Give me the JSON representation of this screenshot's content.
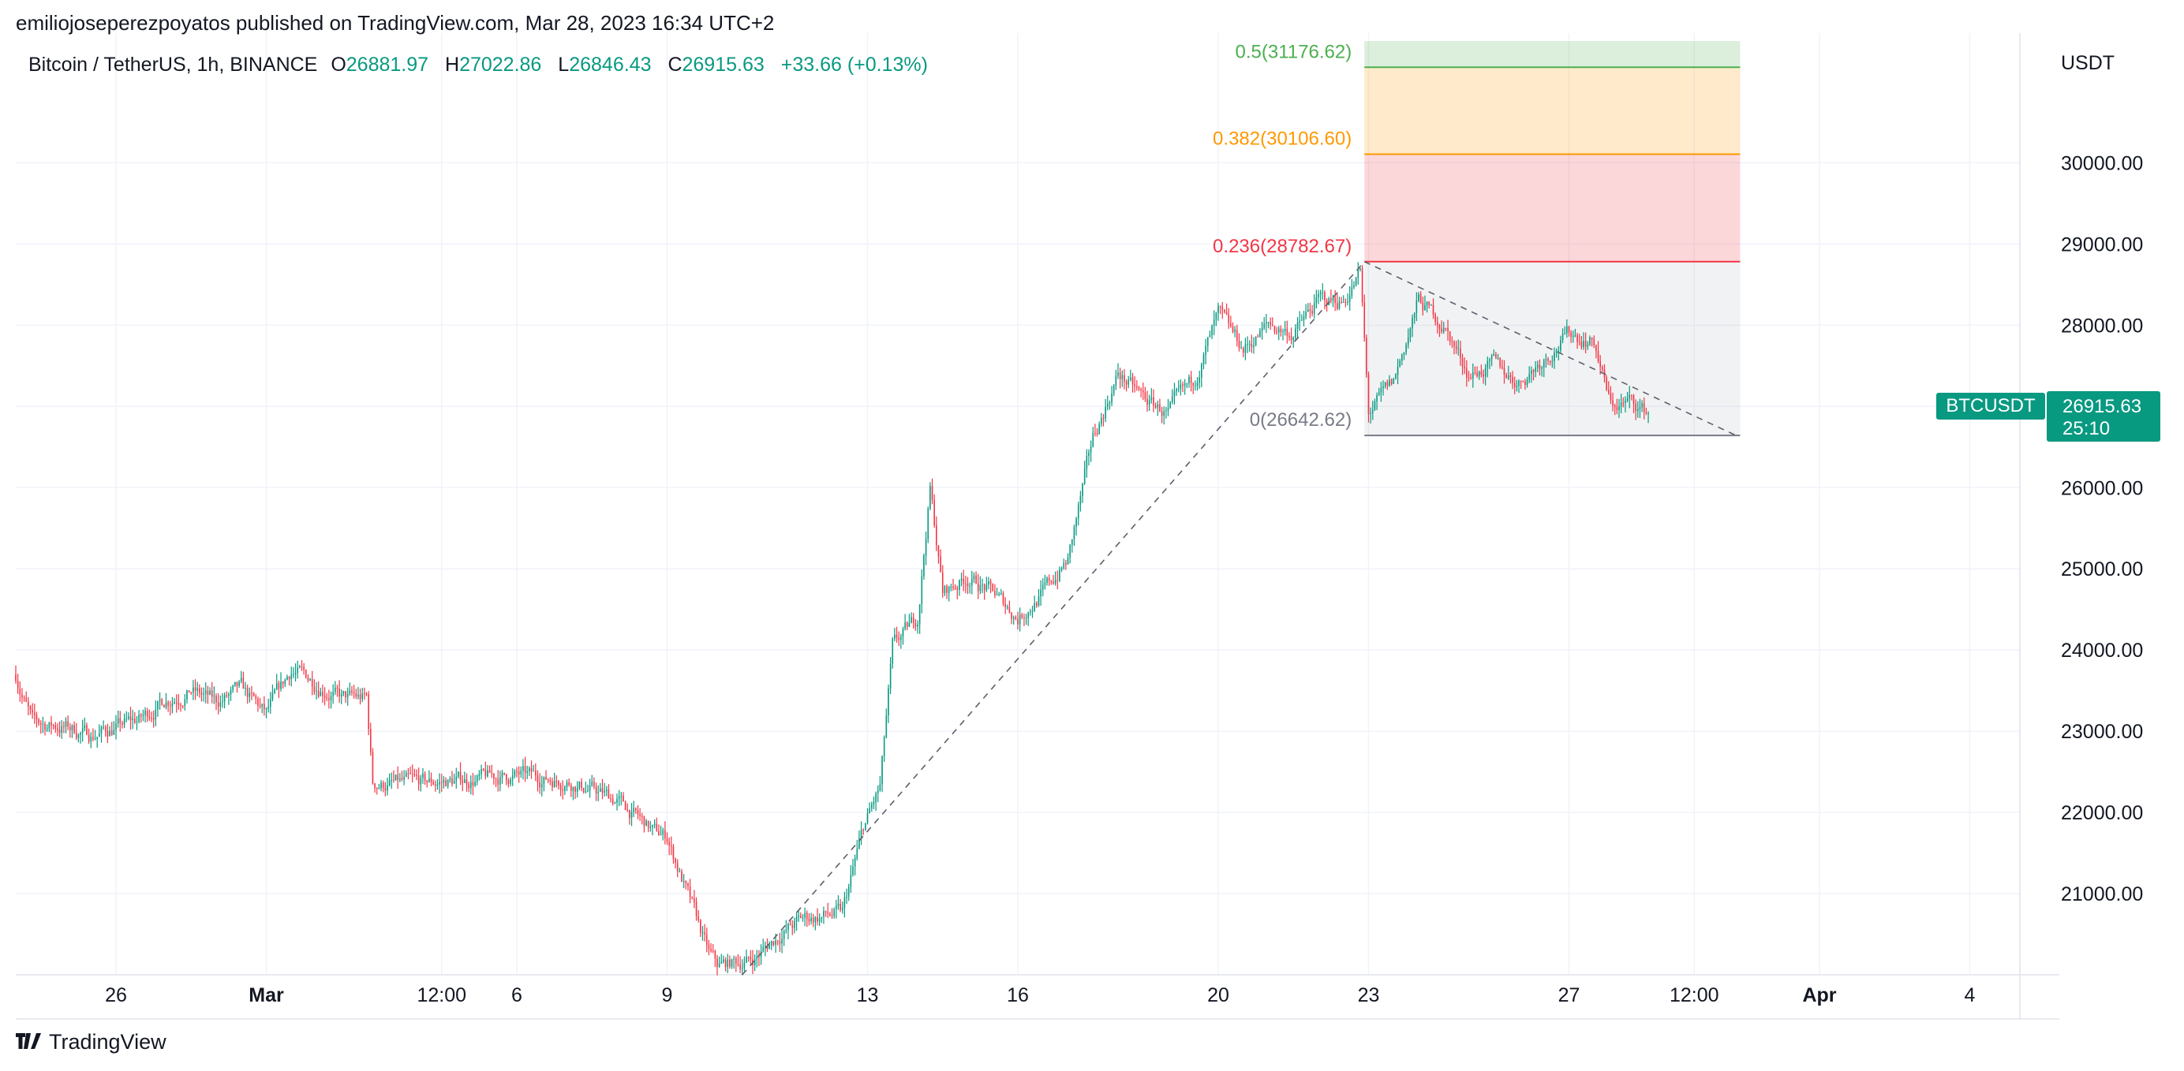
{
  "header": {
    "published_by": "emiliojoseperezpoyatos published on TradingView.com, Mar 28, 2023 16:34 UTC+2"
  },
  "legend": {
    "symbol": "Bitcoin / TetherUS, 1h, BINANCE",
    "o_label": "O",
    "o": "26881.97",
    "h_label": "H",
    "h": "27022.86",
    "l_label": "L",
    "l": "26846.43",
    "c_label": "C",
    "c": "26915.63",
    "change": "+33.66 (+0.13%)"
  },
  "axis": {
    "currency": "USDT"
  },
  "price_tags": {
    "pair": "BTCUSDT",
    "last": "26915.63",
    "countdown": "25:10"
  },
  "footer": {
    "brand": "TradingView",
    "logo": "tv-logo-icon"
  },
  "colors": {
    "up": "#089981",
    "down": "#F23645",
    "grid": "#F0F3FA"
  },
  "chart_data": {
    "type": "candlestick",
    "timeframe": "1h",
    "ylim": [
      20000,
      31500
    ],
    "yticks": [
      21000,
      22000,
      23000,
      24000,
      25000,
      26000,
      27000,
      28000,
      29000,
      30000
    ],
    "ytick_labels": [
      "21000.00",
      "22000.00",
      "23000.00",
      "24000.00",
      "25000.00",
      "26000.00",
      "27000.00",
      "28000.00",
      "29000.00",
      "30000.00"
    ],
    "x_start": "Feb 24, 2023 00:00",
    "x_end": "Apr 5, 2023 00:00",
    "xticks": [
      {
        "t": "Feb 26",
        "label": "26"
      },
      {
        "t": "Mar 1",
        "label": "Mar"
      },
      {
        "t": "Mar 4 12:00",
        "label": "12:00"
      },
      {
        "t": "Mar 6",
        "label": "6"
      },
      {
        "t": "Mar 9",
        "label": "9"
      },
      {
        "t": "Mar 13",
        "label": "13"
      },
      {
        "t": "Mar 16",
        "label": "16"
      },
      {
        "t": "Mar 20",
        "label": "20"
      },
      {
        "t": "Mar 23",
        "label": "23"
      },
      {
        "t": "Mar 27",
        "label": "27"
      },
      {
        "t": "Mar 29 12:00",
        "label": "12:00"
      },
      {
        "t": "Apr 1",
        "label": "Apr"
      },
      {
        "t": "Apr 4",
        "label": "4"
      }
    ],
    "price_path": [
      {
        "t": "Feb 24 00:00",
        "p": 23700
      },
      {
        "t": "Feb 24 08:00",
        "p": 23100
      },
      {
        "t": "Feb 25 00:00",
        "p": 23050
      },
      {
        "t": "Feb 25 12:00",
        "p": 22950
      },
      {
        "t": "Feb 26 00:00",
        "p": 23050
      },
      {
        "t": "Feb 26 12:00",
        "p": 23150
      },
      {
        "t": "Feb 27 00:00",
        "p": 23400
      },
      {
        "t": "Feb 27 12:00",
        "p": 23500
      },
      {
        "t": "Feb 28 00:00",
        "p": 23350
      },
      {
        "t": "Feb 28 12:00",
        "p": 23500
      },
      {
        "t": "Mar 1 00:00",
        "p": 23200
      },
      {
        "t": "Mar 1 12:00",
        "p": 23750
      },
      {
        "t": "Mar 2 00:00",
        "p": 23600
      },
      {
        "t": "Mar 2 12:00",
        "p": 23400
      },
      {
        "t": "Mar 3 00:00",
        "p": 23400
      },
      {
        "t": "Mar 3 03:00",
        "p": 22350
      },
      {
        "t": "Mar 4 00:00",
        "p": 22350
      },
      {
        "t": "Mar 5 00:00",
        "p": 22400
      },
      {
        "t": "Mar 6 00:00",
        "p": 22450
      },
      {
        "t": "Mar 7 00:00",
        "p": 22400
      },
      {
        "t": "Mar 8 00:00",
        "p": 22150
      },
      {
        "t": "Mar 8 18:00",
        "p": 21750
      },
      {
        "t": "Mar 9 00:00",
        "p": 21700
      },
      {
        "t": "Mar 9 20:00",
        "p": 20250
      },
      {
        "t": "Mar 10 00:00",
        "p": 20100
      },
      {
        "t": "Mar 10 18:00",
        "p": 20200
      },
      {
        "t": "Mar 11 06:00",
        "p": 20500
      },
      {
        "t": "Mar 11 18:00",
        "p": 20700
      },
      {
        "t": "Mar 12 12:00",
        "p": 20750
      },
      {
        "t": "Mar 12 22:00",
        "p": 21800
      },
      {
        "t": "Mar 13 06:00",
        "p": 22300
      },
      {
        "t": "Mar 13 12:00",
        "p": 24000
      },
      {
        "t": "Mar 14 00:00",
        "p": 24400
      },
      {
        "t": "Mar 14 06:00",
        "p": 26000
      },
      {
        "t": "Mar 14 12:00",
        "p": 24700
      },
      {
        "t": "Mar 15 00:00",
        "p": 24900
      },
      {
        "t": "Mar 15 12:00",
        "p": 24700
      },
      {
        "t": "Mar 16 00:00",
        "p": 24400
      },
      {
        "t": "Mar 16 12:00",
        "p": 24700
      },
      {
        "t": "Mar 17 00:00",
        "p": 25100
      },
      {
        "t": "Mar 17 12:00",
        "p": 26600
      },
      {
        "t": "Mar 18 00:00",
        "p": 27400
      },
      {
        "t": "Mar 18 12:00",
        "p": 27100
      },
      {
        "t": "Mar 19 00:00",
        "p": 26900
      },
      {
        "t": "Mar 19 12:00",
        "p": 27300
      },
      {
        "t": "Mar 20 00:00",
        "p": 28100
      },
      {
        "t": "Mar 20 12:00",
        "p": 27700
      },
      {
        "t": "Mar 21 00:00",
        "p": 28000
      },
      {
        "t": "Mar 21 12:00",
        "p": 27900
      },
      {
        "t": "Mar 22 00:00",
        "p": 28300
      },
      {
        "t": "Mar 22 12:00",
        "p": 28300
      },
      {
        "t": "Mar 22 20:00",
        "p": 28650
      },
      {
        "t": "Mar 23 00:00",
        "p": 26900
      },
      {
        "t": "Mar 23 12:00",
        "p": 27300
      },
      {
        "t": "Mar 24 00:00",
        "p": 28300
      },
      {
        "t": "Mar 24 12:00",
        "p": 28000
      },
      {
        "t": "Mar 25 00:00",
        "p": 27400
      },
      {
        "t": "Mar 25 12:00",
        "p": 27500
      },
      {
        "t": "Mar 26 00:00",
        "p": 27300
      },
      {
        "t": "Mar 26 12:00",
        "p": 27600
      },
      {
        "t": "Mar 27 00:00",
        "p": 27900
      },
      {
        "t": "Mar 27 12:00",
        "p": 27800
      },
      {
        "t": "Mar 27 20:00",
        "p": 27000
      },
      {
        "t": "Mar 28 06:00",
        "p": 27050
      },
      {
        "t": "Mar 28 14:00",
        "p": 26915.63
      }
    ],
    "last_price": 26915.63,
    "fib_retracement": {
      "levels": [
        {
          "ratio": 0.5,
          "label": "0.5(31176.62)",
          "price": 31176.62
        },
        {
          "ratio": 0.382,
          "label": "0.382(30106.60)",
          "price": 30106.6
        },
        {
          "ratio": 0.236,
          "label": "0.236(28782.67)",
          "price": 28782.67
        },
        {
          "ratio": 0,
          "label": "0(26642.62)",
          "price": 26642.62
        }
      ],
      "t_start": "Mar 22 22:00",
      "t_end": "Mar 30 10:00",
      "colors": {
        "0.5": "#4CAF50",
        "0.382": "#FF9800",
        "0.236": "#F23645",
        "0": "#787B86"
      }
    },
    "trendlines": [
      {
        "from": {
          "t": "Mar 10 12:00",
          "p": 20000
        },
        "to": {
          "t": "Mar 22 22:00",
          "p": 28782.67
        },
        "style": "dashed"
      },
      {
        "from": {
          "t": "Mar 22 22:00",
          "p": 28782.67
        },
        "to": {
          "t": "Mar 30 08:00",
          "p": 26642.62
        },
        "style": "dashed"
      }
    ]
  }
}
